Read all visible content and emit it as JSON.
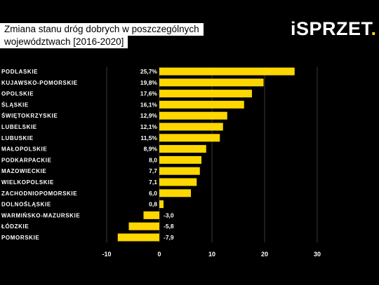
{
  "header": {
    "title_line1": "Zmiana stanu dróg dobrych w poszczególnych",
    "title_line2": "województwach [2016-2020]",
    "logo_main": "SPRZET",
    "logo_prefix": "i",
    "logo_dot": "."
  },
  "colors": {
    "bar": "#FFD700",
    "background": "#000000",
    "grid": "#3a3a3a"
  },
  "chart_data": {
    "type": "bar",
    "orientation": "horizontal",
    "title": "Zmiana stanu dróg dobrych w poszczególnych województwach [2016-2020]",
    "categories": [
      "PODLASKIE",
      "KUJAWSKO-POMORSKIE",
      "OPOLSKIE",
      "ŚLĄSKIE",
      "ŚWIĘTOKRZYSKIE",
      "LUBELSKIE",
      "LUBUSKIE",
      "MAŁOPOLSKIE",
      "PODKARPACKIE",
      "MAZOWIECKIE",
      "WIELKOPOLSKIE",
      "ZACHODNIOPOMORSKIE",
      "DOLNOŚLĄSKIE",
      "WARMIŃSKO-MAZURSKIE",
      "ŁÓDZKIE",
      "POMORSKIE"
    ],
    "values": [
      25.7,
      19.8,
      17.6,
      16.1,
      12.9,
      12.1,
      11.5,
      8.9,
      8.0,
      7.7,
      7.1,
      6.0,
      0.8,
      -3.0,
      -5.8,
      -7.9
    ],
    "value_labels": [
      "25,7%",
      "19,8%",
      "17,6%",
      "16,1%",
      "12,9%",
      "12,1%",
      "11,5%",
      "8,9%",
      "8,0",
      "7,7",
      "7,1",
      "6,0",
      "0,8",
      "-3,0",
      "-5,8",
      "-7,9"
    ],
    "xlim": [
      -10,
      30
    ],
    "xticks": [
      -10,
      0,
      10,
      20,
      30
    ],
    "xtick_labels": [
      "-10",
      "0",
      "10",
      "20",
      "30"
    ],
    "grid": true,
    "xlabel": "",
    "ylabel": ""
  }
}
